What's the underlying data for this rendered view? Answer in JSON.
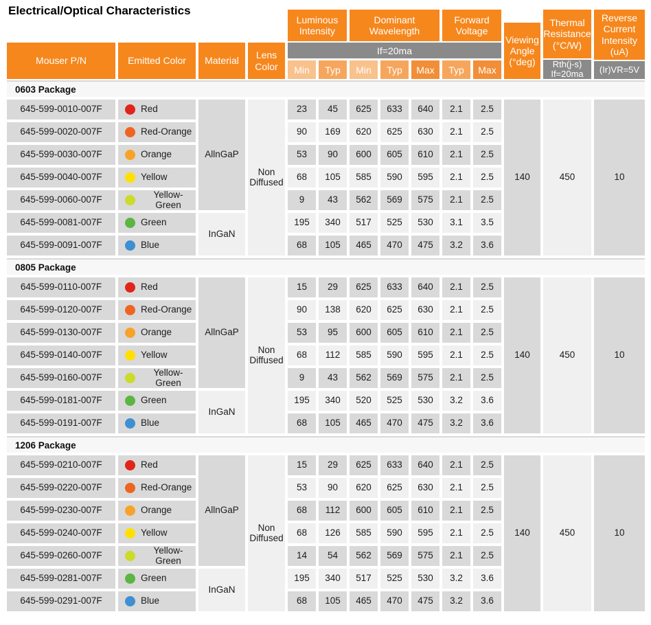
{
  "title": "Electrical/Optical Characteristics",
  "colors": {
    "header_orange": "#F6871D",
    "sub_min": "#F9C18C",
    "sub_typ": "#F6A65C",
    "sub_max": "#F28E38",
    "condition_gray": "#8A8A8A",
    "cell_dark": "#D9D9D9",
    "cell_light": "#F0F0F0"
  },
  "header": {
    "mouser_pn": "Mouser P/N",
    "emitted_color": "Emitted Color",
    "material": "Material",
    "lens_color": "Lens Color",
    "luminous_intensity": "Luminous Intensity",
    "dominant_wavelength": "Dominant Wavelength",
    "forward_voltage": "Forward Voltage",
    "if_condition": "If=20ma",
    "sub_labels": [
      "Min",
      "Typ",
      "Min",
      "Typ",
      "Max",
      "Typ",
      "Max"
    ],
    "viewing_angle": "Viewing Angle (°deg)",
    "thermal_resistance": "Thermal Resistance (°C/W)",
    "thermal_condition_1": "Rth(j-s)",
    "thermal_condition_2": "If=20ma",
    "reverse_current": "Reverse Current Intensity (uA)",
    "reverse_condition": "(Ir)VR=5V"
  },
  "dot_colors": {
    "Red": "#E1251B",
    "Red-Orange": "#EE6522",
    "Orange": "#F7A329",
    "Yellow": "#FFE000",
    "Yellow-Green": "#CBDB2A",
    "Green": "#5BB543",
    "Blue": "#3F8FD2"
  },
  "sections": [
    {
      "name": "0603 Package",
      "materials": [
        {
          "label": "AllnGaP",
          "span": 5
        },
        {
          "label": "InGaN",
          "span": 2
        }
      ],
      "lens": "Non Diffused",
      "viewing_angle": "140",
      "thermal_resistance": "450",
      "reverse_current": "10",
      "rows": [
        {
          "pn": "645-599-0010-007F",
          "color": "Red",
          "values": [
            "23",
            "45",
            "625",
            "633",
            "640",
            "2.1",
            "2.5"
          ]
        },
        {
          "pn": "645-599-0020-007F",
          "color": "Red-Orange",
          "values": [
            "90",
            "169",
            "620",
            "625",
            "630",
            "2.1",
            "2.5"
          ]
        },
        {
          "pn": "645-599-0030-007F",
          "color": "Orange",
          "values": [
            "53",
            "90",
            "600",
            "605",
            "610",
            "2.1",
            "2.5"
          ]
        },
        {
          "pn": "645-599-0040-007F",
          "color": "Yellow",
          "values": [
            "68",
            "105",
            "585",
            "590",
            "595",
            "2.1",
            "2.5"
          ]
        },
        {
          "pn": "645-599-0060-007F",
          "color": "Yellow-Green",
          "values": [
            "9",
            "43",
            "562",
            "569",
            "575",
            "2.1",
            "2.5"
          ]
        },
        {
          "pn": "645-599-0081-007F",
          "color": "Green",
          "values": [
            "195",
            "340",
            "517",
            "525",
            "530",
            "3.1",
            "3.5"
          ]
        },
        {
          "pn": "645-599-0091-007F",
          "color": "Blue",
          "values": [
            "68",
            "105",
            "465",
            "470",
            "475",
            "3.2",
            "3.6"
          ]
        }
      ]
    },
    {
      "name": "0805 Package",
      "materials": [
        {
          "label": "AllnGaP",
          "span": 5
        },
        {
          "label": "InGaN",
          "span": 2
        }
      ],
      "lens": "Non Diffused",
      "viewing_angle": "140",
      "thermal_resistance": "450",
      "reverse_current": "10",
      "rows": [
        {
          "pn": "645-599-0110-007F",
          "color": "Red",
          "values": [
            "15",
            "29",
            "625",
            "633",
            "640",
            "2.1",
            "2.5"
          ]
        },
        {
          "pn": "645-599-0120-007F",
          "color": "Red-Orange",
          "values": [
            "90",
            "138",
            "620",
            "625",
            "630",
            "2.1",
            "2.5"
          ]
        },
        {
          "pn": "645-599-0130-007F",
          "color": "Orange",
          "values": [
            "53",
            "95",
            "600",
            "605",
            "610",
            "2.1",
            "2.5"
          ]
        },
        {
          "pn": "645-599-0140-007F",
          "color": "Yellow",
          "values": [
            "68",
            "112",
            "585",
            "590",
            "595",
            "2.1",
            "2.5"
          ]
        },
        {
          "pn": "645-599-0160-007F",
          "color": "Yellow-Green",
          "values": [
            "9",
            "43",
            "562",
            "569",
            "575",
            "2.1",
            "2.5"
          ]
        },
        {
          "pn": "645-599-0181-007F",
          "color": "Green",
          "values": [
            "195",
            "340",
            "520",
            "525",
            "530",
            "3.2",
            "3.6"
          ]
        },
        {
          "pn": "645-599-0191-007F",
          "color": "Blue",
          "values": [
            "68",
            "105",
            "465",
            "470",
            "475",
            "3.2",
            "3.6"
          ]
        }
      ]
    },
    {
      "name": "1206 Package",
      "materials": [
        {
          "label": "AllnGaP",
          "span": 5
        },
        {
          "label": "InGaN",
          "span": 2
        }
      ],
      "lens": "Non Diffused",
      "viewing_angle": "140",
      "thermal_resistance": "450",
      "reverse_current": "10",
      "rows": [
        {
          "pn": "645-599-0210-007F",
          "color": "Red",
          "values": [
            "15",
            "29",
            "625",
            "633",
            "640",
            "2.1",
            "2.5"
          ]
        },
        {
          "pn": "645-599-0220-007F",
          "color": "Red-Orange",
          "values": [
            "53",
            "90",
            "620",
            "625",
            "630",
            "2.1",
            "2.5"
          ]
        },
        {
          "pn": "645-599-0230-007F",
          "color": "Orange",
          "values": [
            "68",
            "112",
            "600",
            "605",
            "610",
            "2.1",
            "2.5"
          ]
        },
        {
          "pn": "645-599-0240-007F",
          "color": "Yellow",
          "values": [
            "68",
            "126",
            "585",
            "590",
            "595",
            "2.1",
            "2.5"
          ]
        },
        {
          "pn": "645-599-0260-007F",
          "color": "Yellow-Green",
          "values": [
            "14",
            "54",
            "562",
            "569",
            "575",
            "2.1",
            "2.5"
          ]
        },
        {
          "pn": "645-599-0281-007F",
          "color": "Green",
          "values": [
            "195",
            "340",
            "517",
            "525",
            "530",
            "3.2",
            "3.6"
          ]
        },
        {
          "pn": "645-599-0291-007F",
          "color": "Blue",
          "values": [
            "68",
            "105",
            "465",
            "470",
            "475",
            "3.2",
            "3.6"
          ]
        }
      ]
    }
  ]
}
